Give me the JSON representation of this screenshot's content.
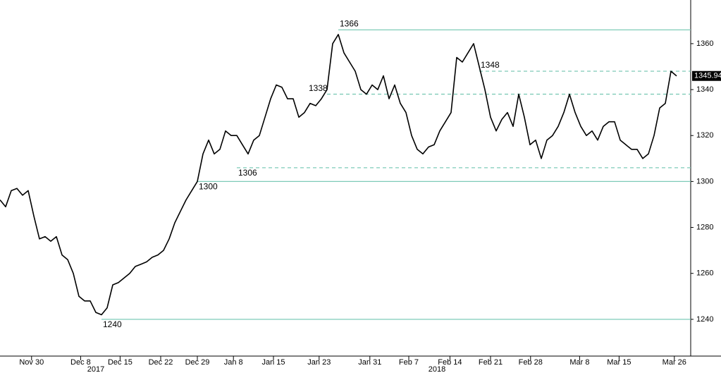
{
  "chart_data": {
    "type": "line",
    "x": [
      0,
      1,
      2,
      3,
      4,
      5,
      6,
      7,
      8,
      9,
      10,
      11,
      12,
      13,
      14,
      15,
      16,
      17,
      18,
      19,
      20,
      21,
      22,
      23,
      24,
      25,
      26,
      27,
      28,
      29,
      30,
      31,
      32,
      33,
      34,
      35,
      36,
      37,
      38,
      39,
      40,
      41,
      42,
      43,
      44,
      45,
      46,
      47,
      48,
      49,
      50,
      51,
      52,
      53,
      54,
      55,
      56,
      57,
      58,
      59,
      60,
      61,
      62,
      63,
      64,
      65,
      66,
      67,
      68,
      69,
      70,
      71,
      72,
      73,
      74,
      75,
      76,
      77,
      78,
      79,
      80,
      81,
      82,
      83,
      84,
      85,
      86,
      87,
      88,
      89,
      90,
      91,
      92,
      93,
      94,
      95,
      96,
      97,
      98,
      99,
      100,
      101,
      102,
      103,
      104,
      105,
      106,
      107,
      108,
      109,
      110,
      111,
      112,
      113,
      114,
      115,
      116,
      117,
      118,
      119,
      120
    ],
    "series": [
      {
        "color": "#000000",
        "values": [
          1292,
          1289,
          1296,
          1297,
          1294,
          1296,
          1285,
          1275,
          1276,
          1274,
          1276,
          1268,
          1266,
          1260,
          1250,
          1248,
          1248,
          1243,
          1242,
          1245,
          1255,
          1256,
          1258,
          1260,
          1263,
          1264,
          1265,
          1267,
          1268,
          1270,
          1275,
          1282,
          1287,
          1292,
          1296,
          1300,
          1312,
          1318,
          1312,
          1314,
          1322,
          1320,
          1320,
          1316,
          1312,
          1318,
          1320,
          1328,
          1336,
          1342,
          1341,
          1336,
          1336,
          1328,
          1330,
          1334,
          1333,
          1336,
          1340,
          1360,
          1364,
          1356,
          1352,
          1348,
          1340,
          1338,
          1342,
          1340,
          1346,
          1336,
          1342,
          1334,
          1330,
          1320,
          1314,
          1312,
          1315,
          1316,
          1322,
          1326,
          1330,
          1354,
          1352,
          1356,
          1360,
          1350,
          1340,
          1328,
          1322,
          1327,
          1330,
          1324,
          1338,
          1328,
          1316,
          1318,
          1310,
          1318,
          1320,
          1324,
          1330,
          1338,
          1330,
          1324,
          1320,
          1322,
          1318,
          1324,
          1326,
          1326,
          1318,
          1316,
          1314,
          1314,
          1310,
          1312,
          1320,
          1332,
          1334,
          1348,
          1345.94
        ]
      }
    ],
    "last_price": {
      "value": 1345.94,
      "label": "1345.94"
    },
    "xlim": [
      0,
      122.5
    ],
    "ylim": [
      1224,
      1379
    ],
    "yticks": [
      1240,
      1260,
      1280,
      1300,
      1320,
      1340,
      1360
    ],
    "xticks": [
      {
        "value": 5.6,
        "label": "Nov 30"
      },
      {
        "value": 14.3,
        "label": "Dec 8"
      },
      {
        "value": 21.3,
        "label": "Dec 15"
      },
      {
        "value": 28.5,
        "label": "Dec 22"
      },
      {
        "value": 35,
        "label": "Dec 29"
      },
      {
        "value": 41.4,
        "label": "Jan 8"
      },
      {
        "value": 48.5,
        "label": "Jan 15"
      },
      {
        "value": 56.6,
        "label": "Jan 23"
      },
      {
        "value": 65.6,
        "label": "Jan 31"
      },
      {
        "value": 72.5,
        "label": "Feb 7"
      },
      {
        "value": 79.8,
        "label": "Feb 14"
      },
      {
        "value": 87,
        "label": "Feb 21"
      },
      {
        "value": 94.1,
        "label": "Feb 28"
      },
      {
        "value": 102.8,
        "label": "Mar 8"
      },
      {
        "value": 109.8,
        "label": "Mar 15"
      },
      {
        "value": 119.6,
        "label": "Mar 26"
      }
    ],
    "year_labels": [
      {
        "value": 17,
        "label": "2017"
      },
      {
        "value": 77.5,
        "label": "2018"
      }
    ],
    "levels": [
      {
        "value": 1366,
        "label": "1366",
        "style": "solid",
        "x_start": 60
      },
      {
        "value": 1348,
        "label": "1348",
        "style": "dashed",
        "x_start": 85
      },
      {
        "value": 1338,
        "label": "1338",
        "style": "dashed",
        "x_start": 58
      },
      {
        "value": 1306,
        "label": "1306",
        "style": "dashed",
        "x_start": 42
      },
      {
        "value": 1300,
        "label": "1300",
        "style": "solid",
        "x_start": 35
      },
      {
        "value": 1240,
        "label": "1240",
        "style": "solid",
        "x_start": 18
      }
    ],
    "level_color": "#7fcbb8"
  }
}
